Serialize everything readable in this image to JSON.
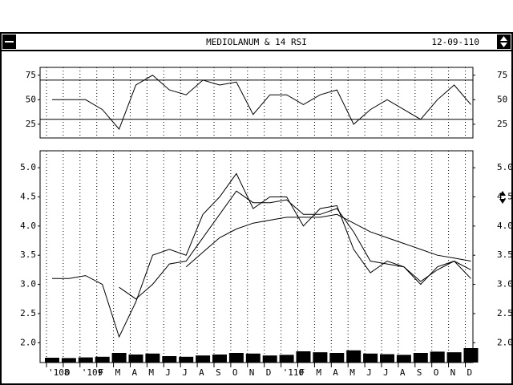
{
  "window": {
    "title": "MEDIOLANUM & 14 RSI",
    "date": "12-09-110"
  },
  "chart_data": [
    {
      "type": "line",
      "categories": [
        "'108",
        "D",
        "'109",
        "F",
        "M",
        "A",
        "M",
        "J",
        "J",
        "A",
        "S",
        "O",
        "N",
        "D",
        "'110",
        "F",
        "M",
        "A",
        "M",
        "J",
        "J",
        "A",
        "S",
        "O",
        "N",
        "D"
      ],
      "series": [
        {
          "color": "#000000",
          "values": [
            3.1,
            3.1,
            3.15,
            3.0,
            2.1,
            2.7,
            3.5,
            3.6,
            3.5,
            4.2,
            4.5,
            4.9,
            4.3,
            4.5,
            4.5,
            4.0,
            4.3,
            4.35,
            3.6,
            3.2,
            3.4,
            3.3,
            3.0,
            3.3,
            3.4,
            3.1
          ]
        },
        {
          "color": "#000000",
          "values": [
            null,
            null,
            null,
            null,
            2.95,
            2.75,
            3.0,
            3.35,
            3.4,
            3.8,
            4.2,
            4.6,
            4.4,
            4.4,
            4.45,
            4.2,
            4.2,
            4.3,
            3.9,
            3.4,
            3.35,
            3.3,
            3.05,
            3.25,
            3.4,
            3.25
          ]
        },
        {
          "color": "#000000",
          "values": [
            null,
            null,
            null,
            null,
            null,
            null,
            null,
            null,
            3.3,
            3.55,
            3.8,
            3.95,
            4.05,
            4.1,
            4.15,
            4.15,
            4.15,
            4.2,
            4.05,
            3.9,
            3.8,
            3.7,
            3.6,
            3.5,
            3.45,
            3.4
          ]
        }
      ],
      "volume": [
        15,
        14,
        16,
        18,
        30,
        25,
        28,
        20,
        18,
        22,
        25,
        30,
        28,
        22,
        24,
        35,
        32,
        30,
        38,
        28,
        26,
        24,
        30,
        34,
        32,
        45
      ],
      "volume_lim": [
        0,
        100
      ],
      "ylim": [
        1.66,
        5.29
      ],
      "yticks": [
        {
          "value": 2.0,
          "label": "2.0"
        },
        {
          "value": 2.5,
          "label": "2.5"
        },
        {
          "value": 3.0,
          "label": "3.0"
        },
        {
          "value": 3.5,
          "label": "3.5"
        },
        {
          "value": 4.0,
          "label": "4.0"
        },
        {
          "value": 4.5,
          "label": "4.5"
        },
        {
          "value": 5.0,
          "label": "5.0"
        }
      ],
      "grid": true
    },
    {
      "type": "line",
      "series": [
        {
          "color": "#000000",
          "values": [
            50,
            50,
            50,
            40,
            20,
            65,
            75,
            60,
            55,
            70,
            65,
            68,
            35,
            55,
            55,
            45,
            55,
            60,
            25,
            40,
            50,
            40,
            30,
            50,
            65,
            45
          ]
        }
      ],
      "levels": [
        70,
        30
      ],
      "ylim": [
        11,
        83
      ],
      "yticks": [
        25,
        50,
        75
      ],
      "grid": true
    }
  ]
}
